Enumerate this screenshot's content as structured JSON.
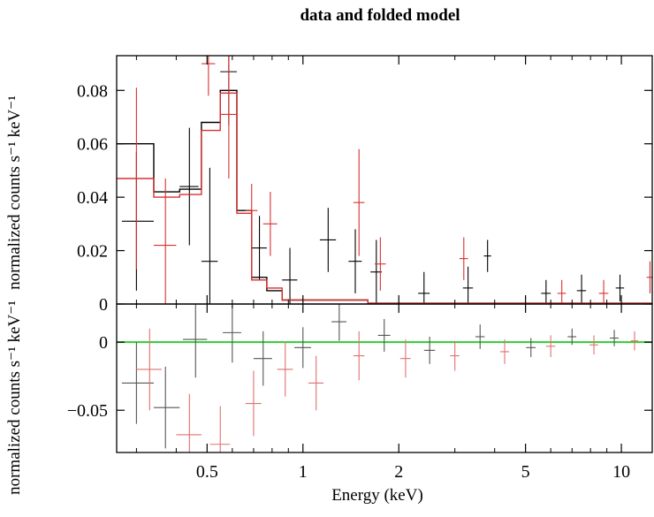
{
  "chart_data": [
    {
      "panel": "top",
      "type": "scatter",
      "title": "data and folded model",
      "xlabel": "",
      "ylabel": "normalized counts s⁻¹ keV⁻¹",
      "x_scale": "log",
      "xlim": [
        0.26,
        12.5
      ],
      "ylim": [
        0,
        0.093
      ],
      "yticks": [
        0,
        0.02,
        0.04,
        0.06,
        0.08
      ],
      "ytick_labels": [
        "0",
        "0.02",
        "0.04",
        "0.06",
        "0.08"
      ],
      "grid": false,
      "series": [
        {
          "color": "#000000",
          "points": [
            {
              "x": 0.3,
              "xerr": [
                0.27,
                0.34
              ],
              "y": 0.031,
              "yerr": 0.026
            },
            {
              "x": 0.44,
              "xerr": [
                0.41,
                0.47
              ],
              "y": 0.044,
              "yerr": 0.022
            },
            {
              "x": 0.51,
              "xerr": [
                0.48,
                0.54
              ],
              "y": 0.016,
              "yerr": 0.035
            },
            {
              "x": 0.585,
              "xerr": [
                0.55,
                0.62
              ],
              "y": 0.087,
              "yerr": 0.02
            },
            {
              "x": 0.73,
              "xerr": [
                0.69,
                0.77
              ],
              "y": 0.021,
              "yerr": 0.012
            },
            {
              "x": 0.91,
              "xerr": [
                0.86,
                0.96
              ],
              "y": 0.009,
              "yerr": 0.012
            },
            {
              "x": 1.2,
              "xerr": [
                1.13,
                1.27
              ],
              "y": 0.024,
              "yerr": 0.012
            },
            {
              "x": 1.46,
              "xerr": [
                1.39,
                1.53
              ],
              "y": 0.016,
              "yerr": 0.012
            },
            {
              "x": 1.7,
              "xerr": [
                1.63,
                1.77
              ],
              "y": 0.012,
              "yerr": 0.012
            },
            {
              "x": 2.4,
              "xerr": [
                2.3,
                2.5
              ],
              "y": 0.004,
              "yerr": 0.008
            },
            {
              "x": 3.3,
              "xerr": [
                3.18,
                3.42
              ],
              "y": 0.006,
              "yerr": 0.008
            },
            {
              "x": 3.8,
              "xerr": [
                3.7,
                3.9
              ],
              "y": 0.018,
              "yerr": 0.006
            },
            {
              "x": 5.8,
              "xerr": [
                5.6,
                6.0
              ],
              "y": 0.004,
              "yerr": 0.005
            },
            {
              "x": 7.5,
              "xerr": [
                7.25,
                7.75
              ],
              "y": 0.005,
              "yerr": 0.006
            },
            {
              "x": 9.9,
              "xerr": [
                9.6,
                10.2
              ],
              "y": 0.006,
              "yerr": 0.005
            }
          ],
          "model_steps": [
            {
              "x0": 0.26,
              "x1": 0.34,
              "y": 0.06
            },
            {
              "x0": 0.34,
              "x1": 0.41,
              "y": 0.042
            },
            {
              "x0": 0.41,
              "x1": 0.48,
              "y": 0.043
            },
            {
              "x0": 0.48,
              "x1": 0.55,
              "y": 0.068
            },
            {
              "x0": 0.55,
              "x1": 0.62,
              "y": 0.08
            },
            {
              "x0": 0.62,
              "x1": 0.69,
              "y": 0.035
            },
            {
              "x0": 0.69,
              "x1": 0.77,
              "y": 0.01
            },
            {
              "x0": 0.77,
              "x1": 0.86,
              "y": 0.005
            },
            {
              "x0": 0.86,
              "x1": 1.6,
              "y": 0.0015
            },
            {
              "x0": 1.6,
              "x1": 12.5,
              "y": 0.0003
            }
          ]
        },
        {
          "color": "#d93030",
          "points": [
            {
              "x": 0.3,
              "xerr": [
                0.27,
                0.34
              ],
              "y": 0.047,
              "yerr": 0.034
            },
            {
              "x": 0.37,
              "xerr": [
                0.34,
                0.4
              ],
              "y": 0.022,
              "yerr": 0.025
            },
            {
              "x": 0.505,
              "xerr": [
                0.48,
                0.53
              ],
              "y": 0.09,
              "yerr": 0.012
            },
            {
              "x": 0.585,
              "xerr": [
                0.55,
                0.62
              ],
              "y": 0.071,
              "yerr": 0.024
            },
            {
              "x": 0.69,
              "xerr": [
                0.66,
                0.72
              ],
              "y": 0.035,
              "yerr": 0.01
            },
            {
              "x": 0.79,
              "xerr": [
                0.75,
                0.83
              ],
              "y": 0.03,
              "yerr": 0.012
            },
            {
              "x": 1.5,
              "xerr": [
                1.44,
                1.56
              ],
              "y": 0.038,
              "yerr": 0.02
            },
            {
              "x": 1.75,
              "xerr": [
                1.68,
                1.82
              ],
              "y": 0.015,
              "yerr": 0.01
            },
            {
              "x": 3.2,
              "xerr": [
                3.1,
                3.3
              ],
              "y": 0.017,
              "yerr": 0.008
            },
            {
              "x": 6.5,
              "xerr": [
                6.3,
                6.7
              ],
              "y": 0.004,
              "yerr": 0.005
            },
            {
              "x": 8.8,
              "xerr": [
                8.5,
                9.1
              ],
              "y": 0.004,
              "yerr": 0.005
            },
            {
              "x": 12.3,
              "xerr": [
                12.0,
                12.5
              ],
              "y": 0.01,
              "yerr": 0.006
            }
          ],
          "model_steps": [
            {
              "x0": 0.26,
              "x1": 0.34,
              "y": 0.047
            },
            {
              "x0": 0.34,
              "x1": 0.41,
              "y": 0.04
            },
            {
              "x0": 0.41,
              "x1": 0.48,
              "y": 0.041
            },
            {
              "x0": 0.48,
              "x1": 0.55,
              "y": 0.065
            },
            {
              "x0": 0.55,
              "x1": 0.62,
              "y": 0.079
            },
            {
              "x0": 0.62,
              "x1": 0.69,
              "y": 0.034
            },
            {
              "x0": 0.69,
              "x1": 0.77,
              "y": 0.009
            },
            {
              "x0": 0.77,
              "x1": 0.86,
              "y": 0.006
            },
            {
              "x0": 0.86,
              "x1": 1.6,
              "y": 0.0015
            },
            {
              "x0": 1.6,
              "x1": 12.5,
              "y": 0.0003
            }
          ]
        }
      ]
    },
    {
      "panel": "bottom",
      "type": "scatter",
      "xlabel": "Energy (keV)",
      "ylabel": "normalized counts s⁻¹ keV⁻¹",
      "x_scale": "log",
      "xlim": [
        0.26,
        12.5
      ],
      "ylim": [
        -0.081,
        0.028
      ],
      "yticks": [
        -0.05,
        0
      ],
      "ytick_labels": [
        "−0.05",
        "0"
      ],
      "xticks": [
        0.5,
        1,
        2,
        5,
        10
      ],
      "xtick_labels": [
        "0.5",
        "1",
        "2",
        "5",
        "10"
      ],
      "grid": false,
      "zero_line_color": "#33cc33",
      "series": [
        {
          "color": "#555555",
          "points": [
            {
              "x": 0.3,
              "xerr": [
                0.27,
                0.34
              ],
              "y": -0.03,
              "yerr": 0.03
            },
            {
              "x": 0.37,
              "xerr": [
                0.34,
                0.41
              ],
              "y": -0.048,
              "yerr": 0.03
            },
            {
              "x": 0.46,
              "xerr": [
                0.42,
                0.5
              ],
              "y": 0.002,
              "yerr": 0.028
            },
            {
              "x": 0.6,
              "xerr": [
                0.56,
                0.64
              ],
              "y": 0.007,
              "yerr": 0.022
            },
            {
              "x": 0.75,
              "xerr": [
                0.7,
                0.8
              ],
              "y": -0.012,
              "yerr": 0.02
            },
            {
              "x": 1.0,
              "xerr": [
                0.94,
                1.06
              ],
              "y": -0.004,
              "yerr": 0.015
            },
            {
              "x": 1.3,
              "xerr": [
                1.23,
                1.37
              ],
              "y": 0.015,
              "yerr": 0.014
            },
            {
              "x": 1.8,
              "xerr": [
                1.72,
                1.88
              ],
              "y": 0.005,
              "yerr": 0.012
            },
            {
              "x": 2.5,
              "xerr": [
                2.4,
                2.6
              ],
              "y": -0.006,
              "yerr": 0.01
            },
            {
              "x": 3.6,
              "xerr": [
                3.48,
                3.72
              ],
              "y": 0.004,
              "yerr": 0.009
            },
            {
              "x": 5.2,
              "xerr": [
                5.02,
                5.38
              ],
              "y": -0.004,
              "yerr": 0.007
            },
            {
              "x": 7.0,
              "xerr": [
                6.78,
                7.22
              ],
              "y": 0.004,
              "yerr": 0.006
            },
            {
              "x": 9.5,
              "xerr": [
                9.2,
                9.8
              ],
              "y": 0.003,
              "yerr": 0.006
            }
          ]
        },
        {
          "color": "#e07070",
          "points": [
            {
              "x": 0.33,
              "xerr": [
                0.3,
                0.36
              ],
              "y": -0.02,
              "yerr": 0.03
            },
            {
              "x": 0.44,
              "xerr": [
                0.4,
                0.48
              ],
              "y": -0.068,
              "yerr": 0.03
            },
            {
              "x": 0.55,
              "xerr": [
                0.51,
                0.59
              ],
              "y": -0.075,
              "yerr": 0.028
            },
            {
              "x": 0.7,
              "xerr": [
                0.66,
                0.74
              ],
              "y": -0.045,
              "yerr": 0.024
            },
            {
              "x": 0.88,
              "xerr": [
                0.83,
                0.93
              ],
              "y": -0.02,
              "yerr": 0.02
            },
            {
              "x": 1.1,
              "xerr": [
                1.04,
                1.16
              ],
              "y": -0.03,
              "yerr": 0.02
            },
            {
              "x": 1.5,
              "xerr": [
                1.44,
                1.56
              ],
              "y": -0.01,
              "yerr": 0.018
            },
            {
              "x": 2.1,
              "xerr": [
                2.02,
                2.18
              ],
              "y": -0.012,
              "yerr": 0.014
            },
            {
              "x": 3.0,
              "xerr": [
                2.9,
                3.1
              ],
              "y": -0.01,
              "yerr": 0.011
            },
            {
              "x": 4.3,
              "xerr": [
                4.16,
                4.44
              ],
              "y": -0.007,
              "yerr": 0.009
            },
            {
              "x": 6.0,
              "xerr": [
                5.8,
                6.2
              ],
              "y": -0.003,
              "yerr": 0.008
            },
            {
              "x": 8.2,
              "xerr": [
                7.95,
                8.45
              ],
              "y": -0.002,
              "yerr": 0.007
            },
            {
              "x": 11.0,
              "xerr": [
                10.7,
                11.3
              ],
              "y": 0.001,
              "yerr": 0.007
            }
          ]
        }
      ]
    }
  ]
}
